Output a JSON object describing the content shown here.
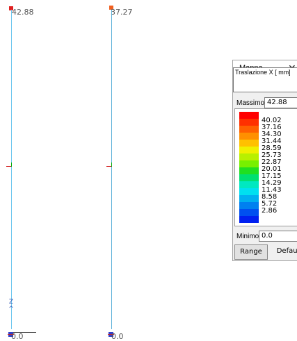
{
  "viewport": {
    "columns": [
      {
        "top_value": "42.88",
        "bottom_value": "0.0",
        "top_marker_color": "#e02020"
      },
      {
        "top_value": "37.27",
        "bottom_value": "0.0",
        "top_marker_color": "#f06020"
      }
    ],
    "axis_z_label": "Z",
    "axis_arrow": "^",
    "column_color": "#6cc6ee",
    "tick_colors": {
      "horizontal": "#cc0000",
      "vertical": "#00aa00"
    },
    "base_node_color": "#3340c8"
  },
  "dialog": {
    "title": "Mappa",
    "close_glyph": "✕",
    "quantity": "Traslazione X [ mm]",
    "max_label": "Massimo",
    "max_value": "42.88",
    "min_label": "Minimo",
    "min_value": "0.0",
    "range_button": "Range",
    "default_button": "Default",
    "legend": {
      "colors": [
        "#ff0000",
        "#ff3000",
        "#ff6000",
        "#ff9000",
        "#ffc000",
        "#f0f000",
        "#b8f000",
        "#78f000",
        "#20e020",
        "#00e070",
        "#00e8c0",
        "#00e0f0",
        "#00b0f0",
        "#0080f0",
        "#0050f0",
        "#0020f0"
      ],
      "labels": [
        "40.02",
        "37.16",
        "34.30",
        "31.44",
        "28.59",
        "25.73",
        "22.87",
        "20.01",
        "17.15",
        "14.29",
        "11.43",
        "8.58",
        "5.72",
        "2.86"
      ]
    }
  }
}
